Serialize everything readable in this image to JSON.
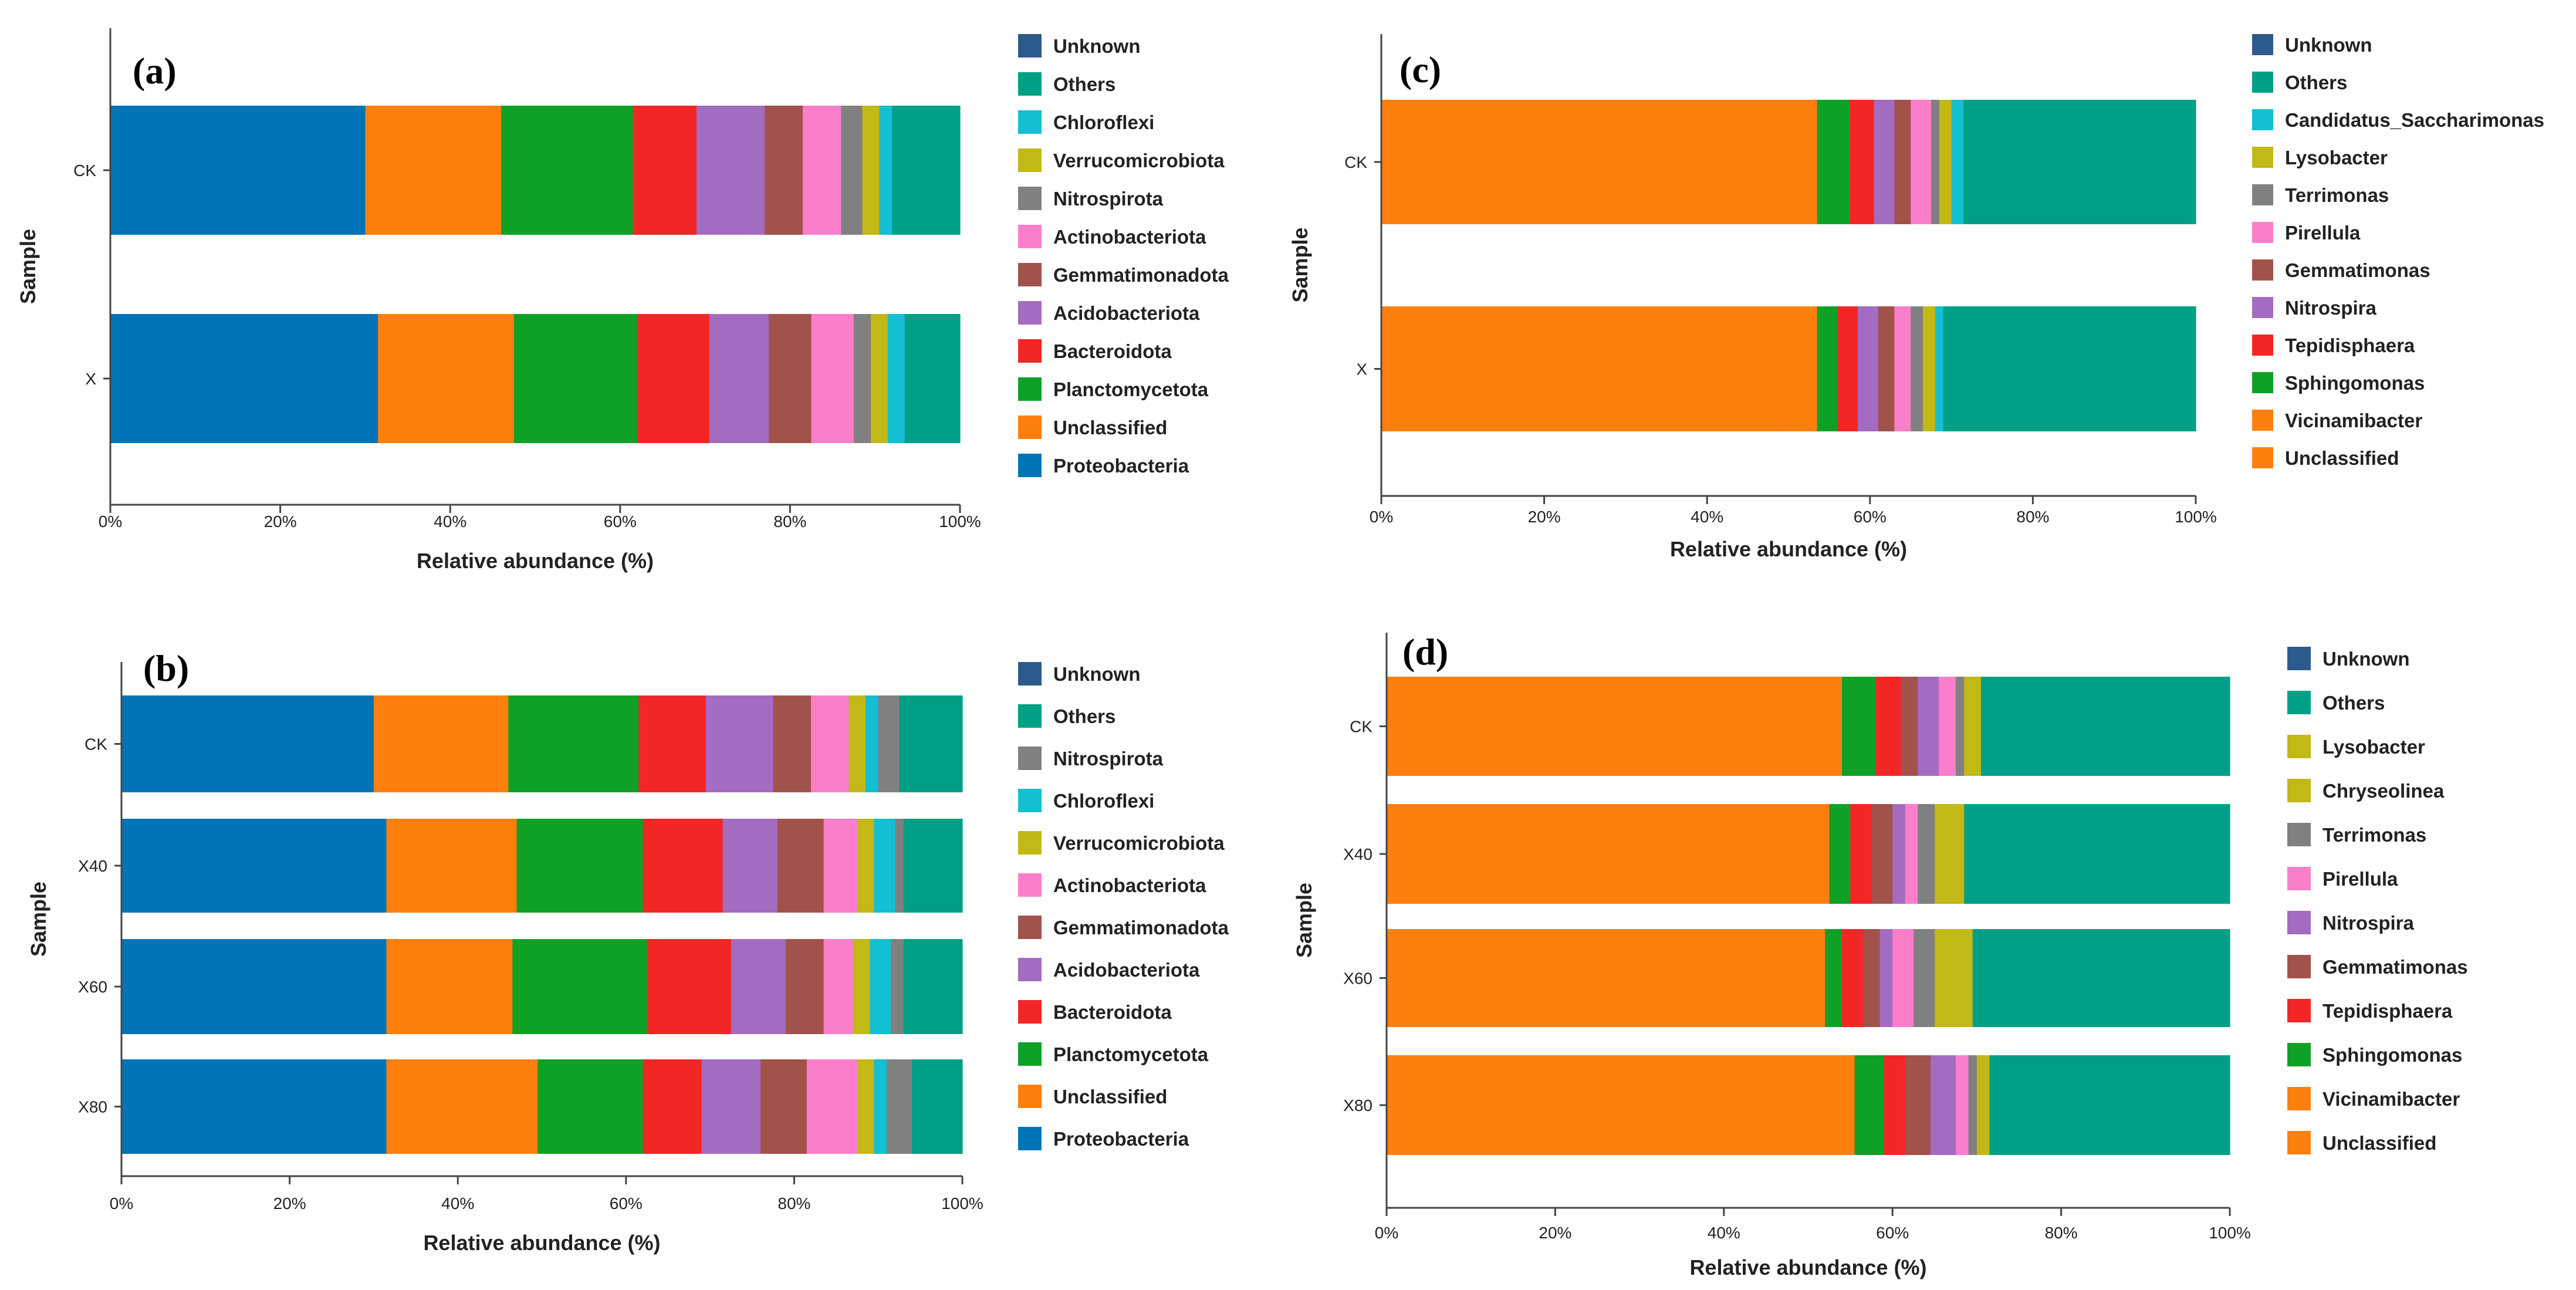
{
  "colors": {
    "Unknown": "#2d5a8c",
    "Others": "#00a086",
    "Chloroflexi": "#12bfd3",
    "Verrucomicrobiota": "#c2b816",
    "Nitrospirota": "#808080",
    "Actinobacteriota": "#fb7ecb",
    "Gemmatimonadota": "#a0524b",
    "Acidobacteriota": "#a46cc0",
    "Bacteroidota": "#f32626",
    "Planctomycetota": "#0fa126",
    "Unclassified": "#ff7f0e",
    "Proteobacteria": "#0074b7",
    "Candidatus_Saccharimonas": "#12bfd3",
    "Lysobacter": "#c2b816",
    "Terrimonas": "#808080",
    "Pirellula": "#fb7ecb",
    "Gemmatimonas": "#a0524b",
    "Nitrospira": "#a46cc0",
    "Tepidisphaera": "#f32626",
    "Sphingomonas": "#0fa126",
    "Vicinamibacter": "#ff7f0e",
    "Chryseolinea": "#c2b816"
  },
  "chart_data": [
    {
      "panel": "(a)",
      "type": "bar",
      "orientation": "horizontal",
      "stacked": true,
      "title": "",
      "xlabel": "Relative abundance (%)",
      "ylabel": "Sample",
      "xlim": [
        0,
        100
      ],
      "xticks": [
        "0%",
        "20%",
        "40%",
        "60%",
        "80%",
        "100%"
      ],
      "categories": [
        "CK",
        "X"
      ],
      "stack_order": [
        "Proteobacteria",
        "Unclassified",
        "Planctomycetota",
        "Bacteroidota",
        "Acidobacteriota",
        "Gemmatimonadota",
        "Actinobacteriota",
        "Nitrospirota",
        "Verrucomicrobiota",
        "Chloroflexi",
        "Others",
        "Unknown"
      ],
      "legend": [
        "Unknown",
        "Others",
        "Chloroflexi",
        "Verrucomicrobiota",
        "Nitrospirota",
        "Actinobacteriota",
        "Gemmatimonadota",
        "Acidobacteriota",
        "Bacteroidota",
        "Planctomycetota",
        "Unclassified",
        "Proteobacteria"
      ],
      "series": [
        {
          "name": "Proteobacteria",
          "values": [
            30.0,
            31.5
          ]
        },
        {
          "name": "Unclassified",
          "values": [
            16.0,
            16.0
          ]
        },
        {
          "name": "Planctomycetota",
          "values": [
            15.5,
            14.5
          ]
        },
        {
          "name": "Bacteroidota",
          "values": [
            7.5,
            8.5
          ]
        },
        {
          "name": "Acidobacteriota",
          "values": [
            8.0,
            7.0
          ]
        },
        {
          "name": "Gemmatimonadota",
          "values": [
            4.5,
            5.0
          ]
        },
        {
          "name": "Actinobacteriota",
          "values": [
            4.5,
            5.0
          ]
        },
        {
          "name": "Nitrospirota",
          "values": [
            2.5,
            2.0
          ]
        },
        {
          "name": "Verrucomicrobiota",
          "values": [
            2.0,
            2.0
          ]
        },
        {
          "name": "Chloroflexi",
          "values": [
            1.5,
            2.0
          ]
        },
        {
          "name": "Others",
          "values": [
            8.0,
            6.5
          ]
        },
        {
          "name": "Unknown",
          "values": [
            0.0,
            0.0
          ]
        }
      ]
    },
    {
      "panel": "(b)",
      "type": "bar",
      "orientation": "horizontal",
      "stacked": true,
      "title": "",
      "xlabel": "Relative abundance (%)",
      "ylabel": "Sample",
      "xlim": [
        0,
        100
      ],
      "xticks": [
        "0%",
        "20%",
        "40%",
        "60%",
        "80%",
        "100%"
      ],
      "categories": [
        "CK",
        "X40",
        "X60",
        "X80"
      ],
      "stack_order": [
        "Proteobacteria",
        "Unclassified",
        "Planctomycetota",
        "Bacteroidota",
        "Acidobacteriota",
        "Gemmatimonadota",
        "Actinobacteriota",
        "Verrucomicrobiota",
        "Chloroflexi",
        "Nitrospirota",
        "Others",
        "Unknown"
      ],
      "legend": [
        "Unknown",
        "Others",
        "Nitrospirota",
        "Chloroflexi",
        "Verrucomicrobiota",
        "Actinobacteriota",
        "Gemmatimonadota",
        "Acidobacteriota",
        "Bacteroidota",
        "Planctomycetota",
        "Unclassified",
        "Proteobacteria"
      ],
      "series": [
        {
          "name": "Proteobacteria",
          "values": [
            30.0,
            31.5,
            31.5,
            31.5
          ]
        },
        {
          "name": "Unclassified",
          "values": [
            16.0,
            15.5,
            15.0,
            18.0
          ]
        },
        {
          "name": "Planctomycetota",
          "values": [
            15.5,
            15.0,
            16.0,
            12.5
          ]
        },
        {
          "name": "Bacteroidota",
          "values": [
            8.0,
            9.5,
            10.0,
            7.0
          ]
        },
        {
          "name": "Acidobacteriota",
          "values": [
            8.0,
            6.5,
            6.5,
            7.0
          ]
        },
        {
          "name": "Gemmatimonadota",
          "values": [
            4.5,
            5.5,
            4.5,
            5.5
          ]
        },
        {
          "name": "Actinobacteriota",
          "values": [
            4.5,
            4.0,
            3.5,
            6.0
          ]
        },
        {
          "name": "Verrucomicrobiota",
          "values": [
            2.0,
            2.0,
            2.0,
            2.0
          ]
        },
        {
          "name": "Chloroflexi",
          "values": [
            1.5,
            2.5,
            2.5,
            1.5
          ]
        },
        {
          "name": "Nitrospirota",
          "values": [
            2.5,
            1.0,
            1.5,
            3.0
          ]
        },
        {
          "name": "Others",
          "values": [
            7.5,
            7.0,
            7.0,
            6.0
          ]
        },
        {
          "name": "Unknown",
          "values": [
            0.0,
            0.0,
            0.0,
            0.0
          ]
        }
      ]
    },
    {
      "panel": "(c)",
      "type": "bar",
      "orientation": "horizontal",
      "stacked": true,
      "title": "",
      "xlabel": "Relative abundance (%)",
      "ylabel": "Sample",
      "xlim": [
        0,
        100
      ],
      "xticks": [
        "0%",
        "20%",
        "40%",
        "60%",
        "80%",
        "100%"
      ],
      "categories": [
        "CK",
        "X"
      ],
      "stack_order": [
        "Unclassified",
        "Vicinamibacter",
        "Sphingomonas",
        "Tepidisphaera",
        "Nitrospira",
        "Gemmatimonas",
        "Pirellula",
        "Terrimonas",
        "Lysobacter",
        "Candidatus_Saccharimonas",
        "Others",
        "Unknown"
      ],
      "legend": [
        "Unknown",
        "Others",
        "Candidatus_Saccharimonas",
        "Lysobacter",
        "Terrimonas",
        "Pirellula",
        "Gemmatimonas",
        "Nitrospira",
        "Tepidisphaera",
        "Sphingomonas",
        "Vicinamibacter",
        "Unclassified"
      ],
      "series": [
        {
          "name": "Unclassified",
          "values": [
            48.0,
            48.5
          ]
        },
        {
          "name": "Vicinamibacter",
          "values": [
            5.5,
            5.0
          ]
        },
        {
          "name": "Sphingomonas",
          "values": [
            4.0,
            2.5
          ]
        },
        {
          "name": "Tepidisphaera",
          "values": [
            3.0,
            2.5
          ]
        },
        {
          "name": "Nitrospira",
          "values": [
            2.5,
            2.5
          ]
        },
        {
          "name": "Gemmatimonas",
          "values": [
            2.0,
            2.0
          ]
        },
        {
          "name": "Pirellula",
          "values": [
            2.5,
            2.0
          ]
        },
        {
          "name": "Terrimonas",
          "values": [
            1.0,
            1.5
          ]
        },
        {
          "name": "Lysobacter",
          "values": [
            1.5,
            1.5
          ]
        },
        {
          "name": "Candidatus_Saccharimonas",
          "values": [
            1.5,
            1.0
          ]
        },
        {
          "name": "Others",
          "values": [
            28.5,
            31.0
          ]
        },
        {
          "name": "Unknown",
          "values": [
            0.0,
            0.0
          ]
        }
      ]
    },
    {
      "panel": "(d)",
      "type": "bar",
      "orientation": "horizontal",
      "stacked": true,
      "title": "",
      "xlabel": "Relative abundance (%)",
      "ylabel": "Sample",
      "xlim": [
        0,
        100
      ],
      "xticks": [
        "0%",
        "20%",
        "40%",
        "60%",
        "80%",
        "100%"
      ],
      "categories": [
        "CK",
        "X40",
        "X60",
        "X80"
      ],
      "stack_order": [
        "Unclassified",
        "Vicinamibacter",
        "Sphingomonas",
        "Tepidisphaera",
        "Gemmatimonas",
        "Nitrospira",
        "Pirellula",
        "Terrimonas",
        "Chryseolinea",
        "Lysobacter",
        "Others",
        "Unknown"
      ],
      "legend": [
        "Unknown",
        "Others",
        "Lysobacter",
        "Chryseolinea",
        "Terrimonas",
        "Pirellula",
        "Nitrospira",
        "Gemmatimonas",
        "Tepidisphaera",
        "Sphingomonas",
        "Vicinamibacter",
        "Unclassified"
      ],
      "series": [
        {
          "name": "Unclassified",
          "values": [
            48.5,
            48.5,
            47.5,
            50.5
          ]
        },
        {
          "name": "Vicinamibacter",
          "values": [
            5.5,
            4.0,
            4.5,
            5.0
          ]
        },
        {
          "name": "Sphingomonas",
          "values": [
            4.0,
            2.5,
            2.0,
            3.5
          ]
        },
        {
          "name": "Tepidisphaera",
          "values": [
            3.0,
            2.5,
            2.5,
            2.5
          ]
        },
        {
          "name": "Gemmatimonas",
          "values": [
            2.0,
            2.5,
            2.0,
            3.0
          ]
        },
        {
          "name": "Nitrospira",
          "values": [
            2.5,
            1.5,
            1.5,
            3.0
          ]
        },
        {
          "name": "Pirellula",
          "values": [
            2.0,
            1.5,
            2.5,
            1.5
          ]
        },
        {
          "name": "Terrimonas",
          "values": [
            1.0,
            2.0,
            2.5,
            1.0
          ]
        },
        {
          "name": "Chryseolinea",
          "values": [
            1.0,
            2.0,
            2.5,
            1.0
          ]
        },
        {
          "name": "Lysobacter",
          "values": [
            1.0,
            1.5,
            2.0,
            0.5
          ]
        },
        {
          "name": "Others",
          "values": [
            29.5,
            31.5,
            30.5,
            28.5
          ]
        },
        {
          "name": "Unknown",
          "values": [
            0.0,
            0.0,
            0.0,
            0.0
          ]
        }
      ]
    }
  ]
}
